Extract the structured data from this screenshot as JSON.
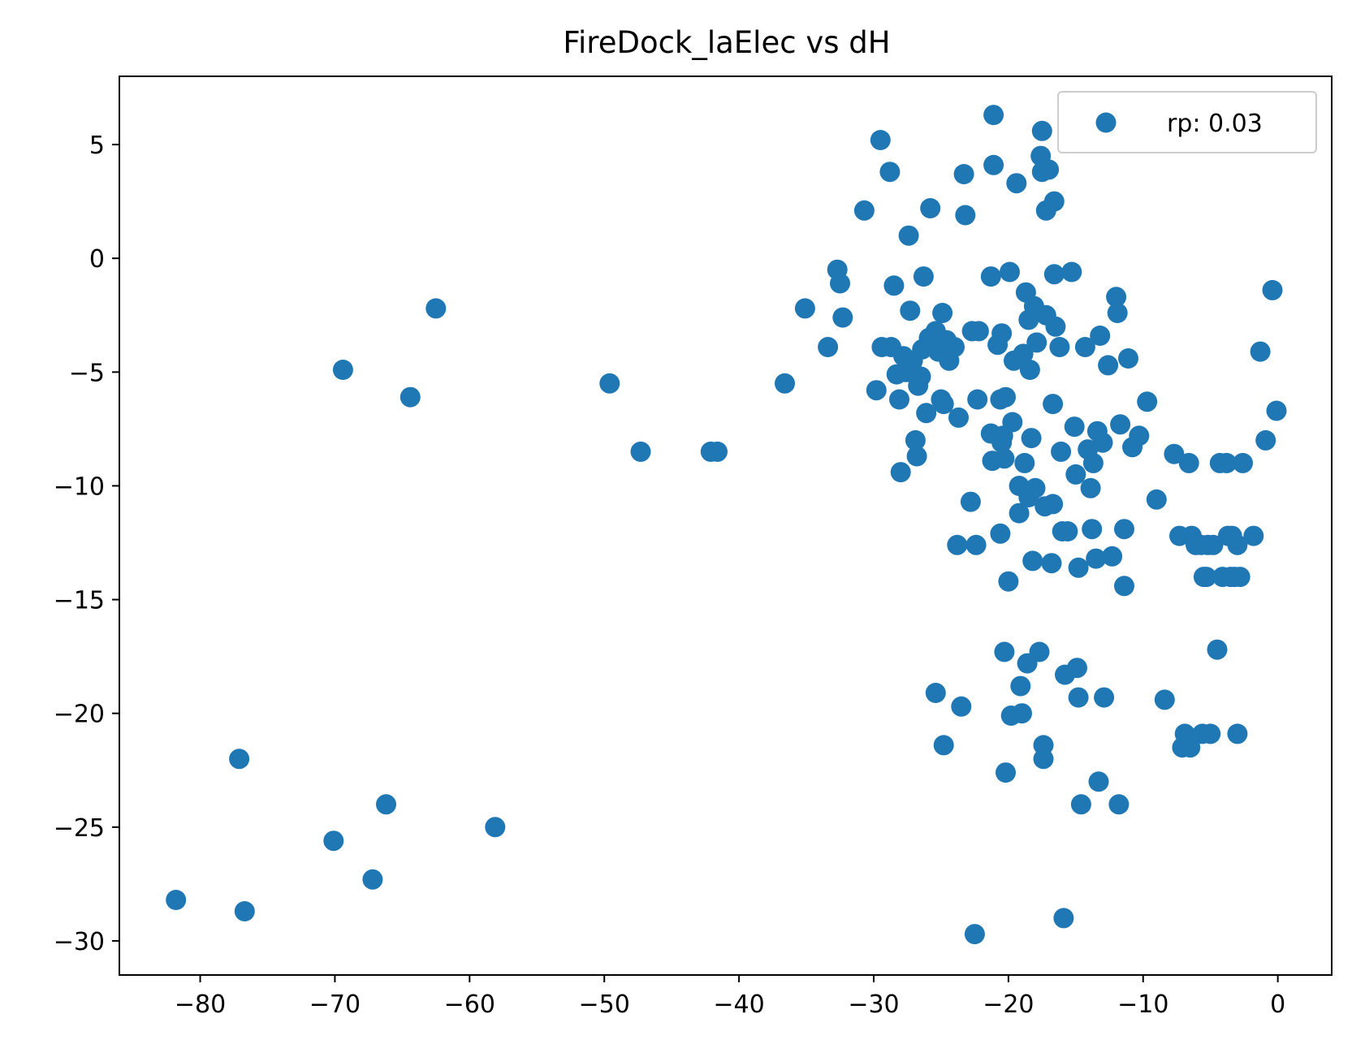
{
  "chart_data": {
    "type": "scatter",
    "title": "FireDock_laElec vs dH",
    "xlabel": "",
    "ylabel": "",
    "xlim": [
      -86,
      4
    ],
    "ylim": [
      -31.5,
      8
    ],
    "xticks": [
      -80,
      -70,
      -60,
      -50,
      -40,
      -30,
      -20,
      -10,
      0
    ],
    "yticks": [
      5,
      0,
      -5,
      -10,
      -15,
      -20,
      -25,
      -30
    ],
    "grid": false,
    "legend_position": "top-right",
    "colors": {
      "series": "#1f77b4",
      "axes": "#000000",
      "legend_border": "#cccccc"
    },
    "series": [
      {
        "name": "rp: 0.03",
        "points": [
          [
            -81.8,
            -28.2
          ],
          [
            -77.1,
            -22.0
          ],
          [
            -76.7,
            -28.7
          ],
          [
            -70.1,
            -25.6
          ],
          [
            -69.4,
            -4.9
          ],
          [
            -67.2,
            -27.3
          ],
          [
            -66.2,
            -24.0
          ],
          [
            -64.4,
            -6.1
          ],
          [
            -62.5,
            -2.2
          ],
          [
            -58.1,
            -25.0
          ],
          [
            -49.6,
            -5.5
          ],
          [
            -47.3,
            -8.5
          ],
          [
            -42.1,
            -8.5
          ],
          [
            -41.6,
            -8.5
          ],
          [
            -36.6,
            -5.5
          ],
          [
            -35.1,
            -2.2
          ],
          [
            -33.4,
            -3.9
          ],
          [
            -32.7,
            -0.5
          ],
          [
            -32.5,
            -1.1
          ],
          [
            -32.3,
            -2.6
          ],
          [
            -30.7,
            2.1
          ],
          [
            -29.8,
            -5.8
          ],
          [
            -29.5,
            5.2
          ],
          [
            -29.4,
            -3.9
          ],
          [
            -28.8,
            3.8
          ],
          [
            -28.7,
            -3.9
          ],
          [
            -28.5,
            -1.2
          ],
          [
            -28.3,
            -5.1
          ],
          [
            -28.1,
            -6.2
          ],
          [
            -28.0,
            -9.4
          ],
          [
            -27.8,
            -4.3
          ],
          [
            -27.6,
            -5.0
          ],
          [
            -27.4,
            1.0
          ],
          [
            -27.3,
            -2.3
          ],
          [
            -27.1,
            -4.5
          ],
          [
            -26.9,
            -8.0
          ],
          [
            -26.8,
            -8.7
          ],
          [
            -26.7,
            -5.6
          ],
          [
            -26.5,
            -5.2
          ],
          [
            -26.4,
            -4.0
          ],
          [
            -26.3,
            -0.8
          ],
          [
            -26.1,
            -6.8
          ],
          [
            -25.9,
            -3.5
          ],
          [
            -25.8,
            2.2
          ],
          [
            -25.6,
            -3.8
          ],
          [
            -25.4,
            -3.2
          ],
          [
            -25.2,
            -4.1
          ],
          [
            -25.0,
            -6.2
          ],
          [
            -24.9,
            -2.4
          ],
          [
            -24.8,
            -6.4
          ],
          [
            -24.6,
            -3.6
          ],
          [
            -24.4,
            -4.5
          ],
          [
            -24.0,
            -3.9
          ],
          [
            -23.8,
            -12.6
          ],
          [
            -23.7,
            -7.0
          ],
          [
            -23.5,
            -19.7
          ],
          [
            -23.3,
            3.7
          ],
          [
            -23.2,
            1.9
          ],
          [
            -22.8,
            -10.7
          ],
          [
            -22.7,
            -3.2
          ],
          [
            -22.5,
            -29.7
          ],
          [
            -22.4,
            -12.6
          ],
          [
            -22.3,
            -6.2
          ],
          [
            -22.2,
            -3.2
          ],
          [
            -24.8,
            -21.4
          ],
          [
            -25.4,
            -19.1
          ],
          [
            -21.3,
            -0.8
          ],
          [
            -21.3,
            -7.7
          ],
          [
            -21.2,
            -8.9
          ],
          [
            -21.1,
            6.3
          ],
          [
            -21.1,
            4.1
          ],
          [
            -20.8,
            -3.8
          ],
          [
            -20.6,
            -12.1
          ],
          [
            -20.6,
            -6.2
          ],
          [
            -20.5,
            -3.3
          ],
          [
            -20.5,
            -8.1
          ],
          [
            -20.4,
            -7.8
          ],
          [
            -20.3,
            -8.8
          ],
          [
            -20.3,
            -17.3
          ],
          [
            -20.2,
            -22.6
          ],
          [
            -20.2,
            -6.1
          ],
          [
            -20.0,
            -14.2
          ],
          [
            -19.9,
            -0.6
          ],
          [
            -19.8,
            -20.1
          ],
          [
            -19.7,
            -7.2
          ],
          [
            -19.6,
            -4.5
          ],
          [
            -19.4,
            3.3
          ],
          [
            -19.2,
            -10.0
          ],
          [
            -19.2,
            -11.2
          ],
          [
            -19.1,
            -18.8
          ],
          [
            -19.0,
            -20.0
          ],
          [
            -18.9,
            -4.2
          ],
          [
            -18.8,
            -9.0
          ],
          [
            -18.7,
            -1.5
          ],
          [
            -18.6,
            -17.8
          ],
          [
            -18.5,
            -10.5
          ],
          [
            -18.5,
            -2.7
          ],
          [
            -18.4,
            -4.9
          ],
          [
            -18.3,
            -7.9
          ],
          [
            -18.2,
            -13.3
          ],
          [
            -18.1,
            -2.1
          ],
          [
            -18.0,
            -10.1
          ],
          [
            -17.9,
            -3.7
          ],
          [
            -17.7,
            -17.3
          ],
          [
            -17.6,
            4.5
          ],
          [
            -17.5,
            5.6
          ],
          [
            -17.5,
            3.8
          ],
          [
            -17.4,
            -21.4
          ],
          [
            -17.4,
            -22.0
          ],
          [
            -17.3,
            -10.9
          ],
          [
            -17.2,
            2.1
          ],
          [
            -17.2,
            -2.5
          ],
          [
            -17.0,
            3.9
          ],
          [
            -16.8,
            -13.4
          ],
          [
            -16.7,
            -10.8
          ],
          [
            -16.7,
            -6.4
          ],
          [
            -16.6,
            2.5
          ],
          [
            -16.6,
            -0.7
          ],
          [
            -16.5,
            -3.0
          ],
          [
            -16.2,
            -3.9
          ],
          [
            -16.1,
            -8.5
          ],
          [
            -16.0,
            -12.0
          ],
          [
            -15.9,
            -29.0
          ],
          [
            -15.8,
            -18.3
          ],
          [
            -15.6,
            -12.0
          ],
          [
            -15.3,
            -0.6
          ],
          [
            -15.1,
            -7.4
          ],
          [
            -15.0,
            -9.5
          ],
          [
            -14.9,
            -18.0
          ],
          [
            -14.8,
            -13.6
          ],
          [
            -14.8,
            -19.3
          ],
          [
            -14.6,
            -24.0
          ],
          [
            -14.3,
            -3.9
          ],
          [
            -14.1,
            -8.4
          ],
          [
            -13.9,
            -10.1
          ],
          [
            -13.8,
            -11.9
          ],
          [
            -13.7,
            -9.0
          ],
          [
            -13.5,
            -13.2
          ],
          [
            -13.4,
            -7.6
          ],
          [
            -13.3,
            -23.0
          ],
          [
            -13.2,
            -3.4
          ],
          [
            -13.0,
            -8.1
          ],
          [
            -12.9,
            -19.3
          ],
          [
            -12.6,
            -4.7
          ],
          [
            -12.3,
            -13.1
          ],
          [
            -12.0,
            -1.7
          ],
          [
            -11.9,
            -2.4
          ],
          [
            -11.8,
            -24.0
          ],
          [
            -11.7,
            -7.3
          ],
          [
            -11.4,
            -14.4
          ],
          [
            -11.4,
            -11.9
          ],
          [
            -11.1,
            -4.4
          ],
          [
            -10.8,
            -8.3
          ],
          [
            -10.3,
            -7.8
          ],
          [
            -9.7,
            -6.3
          ],
          [
            -9.0,
            -10.6
          ],
          [
            -8.4,
            -19.4
          ],
          [
            -7.7,
            -8.6
          ],
          [
            -7.3,
            -12.2
          ],
          [
            -7.1,
            -21.5
          ],
          [
            -6.9,
            -20.9
          ],
          [
            -6.6,
            -9.0
          ],
          [
            -6.5,
            -21.5
          ],
          [
            -6.4,
            -12.2
          ],
          [
            -6.1,
            -12.6
          ],
          [
            -5.7,
            -12.6
          ],
          [
            -5.6,
            -20.9
          ],
          [
            -5.5,
            -14.0
          ],
          [
            -5.3,
            -14.0
          ],
          [
            -5.2,
            -12.6
          ],
          [
            -5.0,
            -20.9
          ],
          [
            -4.8,
            -12.6
          ],
          [
            -4.5,
            -17.2
          ],
          [
            -4.3,
            -9.0
          ],
          [
            -4.1,
            -14.0
          ],
          [
            -3.8,
            -9.0
          ],
          [
            -3.7,
            -12.2
          ],
          [
            -3.5,
            -14.0
          ],
          [
            -3.4,
            -12.2
          ],
          [
            -3.2,
            -14.0
          ],
          [
            -3.0,
            -12.6
          ],
          [
            -3.0,
            -20.9
          ],
          [
            -2.8,
            -14.0
          ],
          [
            -2.6,
            -9.0
          ],
          [
            -1.8,
            -12.2
          ],
          [
            -1.3,
            -4.1
          ],
          [
            -0.9,
            -8.0
          ],
          [
            -0.4,
            -1.4
          ],
          [
            -0.1,
            -6.7
          ]
        ]
      }
    ]
  }
}
